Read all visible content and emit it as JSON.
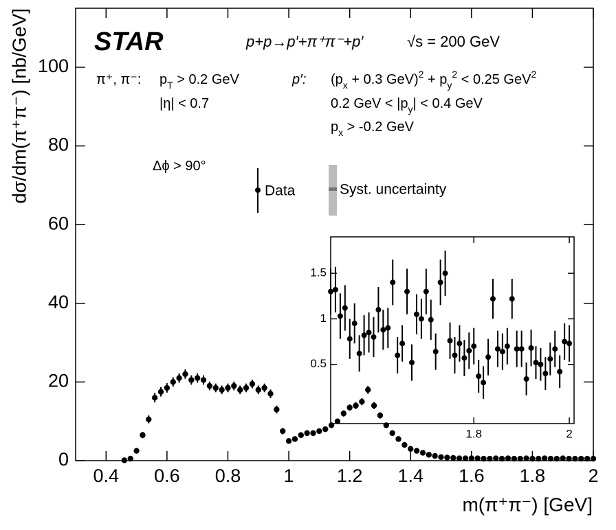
{
  "chart_data": [
    {
      "type": "scatter",
      "xlabel": "m(π⁺π⁻) [GeV]",
      "ylabel": "dσ/dm(π⁺π⁻) [nb/GeV]",
      "xlim": [
        0.3,
        2
      ],
      "ylim": [
        0,
        115
      ],
      "xticks": [
        0.4,
        0.6,
        0.8,
        1,
        1.2,
        1.4,
        1.6,
        1.8,
        2
      ],
      "yticks": [
        0,
        20,
        40,
        60,
        80,
        100
      ],
      "color": "#000000",
      "x": [
        0.46,
        0.48,
        0.5,
        0.52,
        0.54,
        0.56,
        0.58,
        0.6,
        0.62,
        0.64,
        0.66,
        0.68,
        0.7,
        0.72,
        0.74,
        0.76,
        0.78,
        0.8,
        0.82,
        0.84,
        0.86,
        0.88,
        0.9,
        0.92,
        0.94,
        0.96,
        0.98,
        1,
        1.02,
        1.04,
        1.06,
        1.08,
        1.1,
        1.12,
        1.14,
        1.16,
        1.18,
        1.2,
        1.22,
        1.24,
        1.26,
        1.28,
        1.3,
        1.32,
        1.34,
        1.36,
        1.38,
        1.4,
        1.42,
        1.44,
        1.46,
        1.48,
        1.5,
        1.52,
        1.54,
        1.56,
        1.58,
        1.6,
        1.62,
        1.64,
        1.66,
        1.68,
        1.7,
        1.72,
        1.74,
        1.76,
        1.78,
        1.8,
        1.82,
        1.84,
        1.86,
        1.88,
        1.9,
        1.92,
        1.94,
        1.96,
        1.98,
        2
      ],
      "values": [
        0.1,
        0.5,
        2.5,
        6.5,
        10.5,
        16,
        17.5,
        18.5,
        20,
        21,
        22,
        20.5,
        21,
        20.5,
        19,
        18.5,
        18,
        18.5,
        19,
        18,
        18.5,
        19.5,
        18,
        18.5,
        17,
        13,
        7.5,
        5,
        5.5,
        6.5,
        7,
        7,
        7.5,
        8,
        9,
        10,
        12,
        13.5,
        14,
        15,
        18,
        14,
        11.5,
        9,
        7,
        5.5,
        4,
        3,
        2.5,
        2,
        1.5,
        1.2,
        0.9,
        0.8,
        0.7,
        0.6,
        0.6,
        0.6,
        0.6,
        0.5,
        0.5,
        0.6,
        0.5,
        0.6,
        0.5,
        0.5,
        0.6,
        0.5,
        0.5,
        0.6,
        0.5,
        0.5,
        0.6,
        0.5,
        0.5,
        0.5,
        0.5,
        0.5
      ],
      "errors": [
        0.3,
        0.4,
        0.6,
        0.8,
        1,
        1.2,
        1.2,
        1.2,
        1.2,
        1.2,
        1.2,
        1.2,
        1.2,
        1.2,
        1.1,
        1.1,
        1.1,
        1.1,
        1.1,
        1.1,
        1.1,
        1.1,
        1.1,
        1.1,
        1.1,
        1,
        0.8,
        0.6,
        0.6,
        0.6,
        0.6,
        0.6,
        0.6,
        0.6,
        0.7,
        0.7,
        0.8,
        0.8,
        0.9,
        0.9,
        1,
        0.9,
        0.8,
        0.7,
        0.6,
        0.5,
        0.5,
        0.4,
        0.4,
        0.3,
        0.3,
        0.3,
        0.3,
        0.3,
        0.2,
        0.2,
        0.2,
        0.2,
        0.2,
        0.2,
        0.2,
        0.2,
        0.2,
        0.2,
        0.2,
        0.2,
        0.2,
        0.2,
        0.2,
        0.2,
        0.2,
        0.2,
        0.2,
        0.2,
        0.2,
        0.2,
        0.2,
        0.2
      ],
      "legend": [
        "Data",
        "Syst. uncertainty"
      ],
      "annotations": [
        {
          "segments": [
            {
              "text": "STAR"
            }
          ]
        },
        {
          "segments": [
            {
              "text": "p+p→p′+π⁺π⁻+p′"
            }
          ]
        },
        {
          "segments": [
            {
              "text": "√s = 200 GeV"
            }
          ]
        },
        {
          "segments": [
            {
              "text": "π⁺, π⁻:"
            }
          ]
        },
        {
          "segments": [
            {
              "text": "p"
            },
            {
              "text": "T",
              "shift": "sub"
            },
            {
              "text": " > 0.2 GeV"
            }
          ]
        },
        {
          "segments": [
            {
              "text": "|η| < 0.7"
            }
          ]
        },
        {
          "segments": [
            {
              "text": "p′:"
            }
          ]
        },
        {
          "segments": [
            {
              "text": "(p"
            },
            {
              "text": "x",
              "shift": "sub"
            },
            {
              "text": " + 0.3 GeV)"
            },
            {
              "text": "2",
              "shift": "sup"
            },
            {
              "text": " + p"
            },
            {
              "text": "y",
              "shift": "sub"
            },
            {
              "text": "2",
              "shift": "sup"
            },
            {
              "text": " < 0.25 GeV"
            },
            {
              "text": "2",
              "shift": "sup"
            }
          ]
        },
        {
          "segments": [
            {
              "text": "0.2 GeV < |p"
            },
            {
              "text": "y",
              "shift": "sub"
            },
            {
              "text": "| < 0.4 GeV"
            }
          ]
        },
        {
          "segments": [
            {
              "text": "p"
            },
            {
              "text": "x",
              "shift": "sub"
            },
            {
              "text": " > -0.2 GeV"
            }
          ]
        },
        {
          "segments": [
            {
              "text": "Δϕ > 90°"
            }
          ]
        }
      ]
    },
    {
      "type": "scatter",
      "xlim": [
        1.5,
        2.01
      ],
      "ylim": [
        -0.15,
        1.9
      ],
      "xticks": [
        1.8,
        2
      ],
      "yticks": [
        0.5,
        1,
        1.5
      ],
      "color": "#000000",
      "x": [
        1.5,
        1.51,
        1.52,
        1.53,
        1.54,
        1.55,
        1.56,
        1.57,
        1.58,
        1.59,
        1.6,
        1.61,
        1.62,
        1.63,
        1.64,
        1.65,
        1.66,
        1.67,
        1.68,
        1.69,
        1.7,
        1.71,
        1.72,
        1.73,
        1.74,
        1.75,
        1.76,
        1.77,
        1.78,
        1.79,
        1.8,
        1.81,
        1.82,
        1.83,
        1.84,
        1.85,
        1.86,
        1.87,
        1.88,
        1.89,
        1.9,
        1.91,
        1.92,
        1.93,
        1.94,
        1.95,
        1.96,
        1.97,
        1.98,
        1.99,
        2
      ],
      "values": [
        1.3,
        1.32,
        1.03,
        1.12,
        0.78,
        0.95,
        0.62,
        0.82,
        0.85,
        0.8,
        1.1,
        0.88,
        0.9,
        1.4,
        0.6,
        0.73,
        1.3,
        0.52,
        1.05,
        1,
        1.3,
        0.99,
        0.64,
        1.4,
        1.5,
        0.76,
        0.6,
        0.73,
        0.57,
        0.65,
        0.7,
        0.37,
        0.3,
        0.58,
        1.22,
        0.67,
        0.64,
        0.7,
        1.22,
        0.67,
        0.67,
        0.34,
        0.68,
        0.52,
        0.5,
        0.4,
        0.56,
        0.67,
        0.42,
        0.75,
        0.73
      ],
      "errors": [
        0.25,
        0.25,
        0.25,
        0.25,
        0.22,
        0.22,
        0.2,
        0.22,
        0.22,
        0.22,
        0.25,
        0.22,
        0.22,
        0.25,
        0.2,
        0.2,
        0.25,
        0.2,
        0.22,
        0.22,
        0.25,
        0.22,
        0.2,
        0.25,
        0.25,
        0.2,
        0.2,
        0.2,
        0.2,
        0.2,
        0.2,
        0.18,
        0.18,
        0.2,
        0.22,
        0.2,
        0.2,
        0.2,
        0.22,
        0.2,
        0.2,
        0.18,
        0.2,
        0.18,
        0.18,
        0.18,
        0.18,
        0.2,
        0.18,
        0.2,
        0.2
      ]
    }
  ]
}
